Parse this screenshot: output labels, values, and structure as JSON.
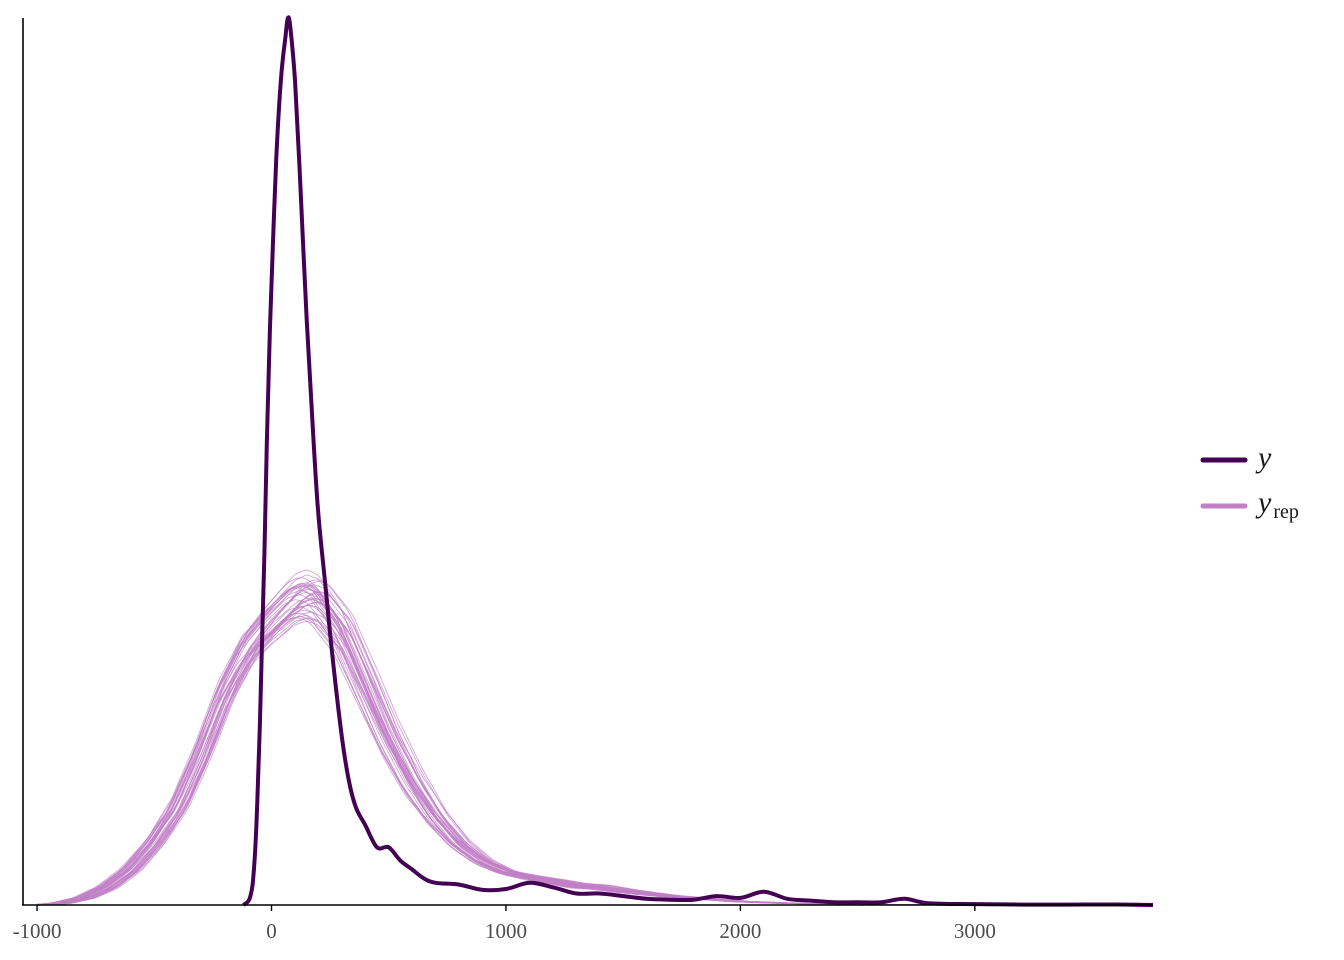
{
  "chart_data": {
    "type": "line",
    "title": "",
    "xlabel": "",
    "ylabel": "",
    "xlim": [
      -1060,
      3760
    ],
    "ylim": [
      0,
      1.0
    ],
    "x_ticks": [
      -1000,
      0,
      1000,
      2000,
      3000
    ],
    "x_tick_labels": [
      "-1000",
      "0",
      "1000",
      "2000",
      "3000"
    ],
    "grid": false,
    "y_axis_labels": false,
    "legend": {
      "position": "right",
      "entries": [
        {
          "label": "y",
          "subscript": "",
          "color": "#440154"
        },
        {
          "label": "y",
          "subscript": "rep",
          "color": "#c17fc6"
        }
      ]
    },
    "series": [
      {
        "role": "observed",
        "color": "#440154",
        "x": [
          -120,
          -100,
          -90,
          -80,
          -70,
          -60,
          -50,
          -40,
          -30,
          -20,
          -10,
          0,
          20,
          40,
          60,
          70,
          80,
          100,
          120,
          150,
          180,
          200,
          230,
          260,
          300,
          330,
          360,
          400,
          450,
          500,
          550,
          600,
          650,
          700,
          800,
          900,
          1000,
          1100,
          1200,
          1300,
          1400,
          1500,
          1600,
          1700,
          1800,
          1900,
          2000,
          2100,
          2200,
          2300,
          2400,
          2500,
          2600,
          2700,
          2800,
          3000,
          3200,
          3400,
          3600,
          3760
        ],
        "y": [
          0.0,
          0.004,
          0.01,
          0.025,
          0.06,
          0.12,
          0.2,
          0.3,
          0.4,
          0.52,
          0.62,
          0.7,
          0.84,
          0.93,
          0.98,
          1.0,
          0.99,
          0.93,
          0.83,
          0.66,
          0.52,
          0.44,
          0.36,
          0.28,
          0.19,
          0.14,
          0.11,
          0.09,
          0.065,
          0.065,
          0.05,
          0.04,
          0.03,
          0.025,
          0.023,
          0.017,
          0.018,
          0.025,
          0.02,
          0.013,
          0.013,
          0.01,
          0.007,
          0.006,
          0.006,
          0.01,
          0.008,
          0.015,
          0.007,
          0.005,
          0.003,
          0.003,
          0.003,
          0.007,
          0.002,
          0.001,
          0.0005,
          0.0005,
          0.0006,
          0.0
        ]
      },
      {
        "role": "replicated",
        "color": "#c17fc6",
        "x": [
          -1000,
          -900,
          -800,
          -700,
          -600,
          -500,
          -400,
          -300,
          -200,
          -100,
          0,
          100,
          150,
          200,
          300,
          400,
          500,
          600,
          700,
          800,
          900,
          1000,
          1100,
          1200,
          1300,
          1400,
          1500,
          1600,
          1700,
          1800,
          1900,
          2000,
          2100,
          2200,
          2300,
          2400,
          2600,
          2800,
          3000
        ],
        "y": [
          0.0,
          0.002,
          0.008,
          0.02,
          0.04,
          0.07,
          0.11,
          0.17,
          0.24,
          0.29,
          0.32,
          0.345,
          0.35,
          0.345,
          0.31,
          0.25,
          0.19,
          0.14,
          0.1,
          0.07,
          0.05,
          0.038,
          0.032,
          0.027,
          0.022,
          0.02,
          0.016,
          0.013,
          0.01,
          0.008,
          0.006,
          0.004,
          0.003,
          0.002,
          0.0015,
          0.001,
          0.0006,
          0.0003,
          0.0
        ]
      }
    ],
    "replicate_count": 40
  }
}
